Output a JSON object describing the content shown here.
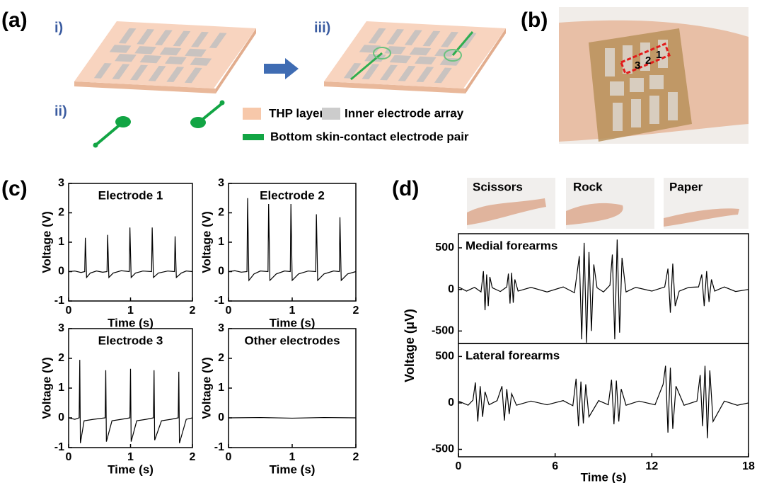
{
  "panels": {
    "a": {
      "label": "(a)",
      "steps": [
        "i)",
        "ii)",
        "iii)"
      ],
      "legend": [
        "THP layer",
        "Inner electrode array",
        "Bottom skin-contact electrode pair"
      ]
    },
    "b": {
      "label": "(b)",
      "electrode_numbers": [
        "3",
        "2",
        "1"
      ]
    },
    "c": {
      "label": "(c)"
    },
    "d": {
      "label": "(d)",
      "gestures": [
        "Scissors",
        "Rock",
        "Paper"
      ],
      "ylabel": "Voltage (μV)"
    }
  },
  "chart_data": [
    {
      "type": "line",
      "title": "Electrode 1",
      "xlabel": "Time (s)",
      "ylabel": "Voltage (V)",
      "xlim": [
        0,
        2
      ],
      "ylim": [
        -1,
        3
      ],
      "xticks": [
        0,
        1,
        2
      ],
      "yticks": [
        -1,
        0,
        1,
        2,
        3
      ],
      "color": "#000000",
      "x": [
        0,
        0.1,
        0.2,
        0.26,
        0.27,
        0.29,
        0.35,
        0.45,
        0.55,
        0.62,
        0.63,
        0.65,
        0.72,
        0.85,
        0.98,
        0.99,
        1.01,
        1.08,
        1.2,
        1.34,
        1.35,
        1.37,
        1.45,
        1.6,
        1.71,
        1.72,
        1.74,
        1.82,
        1.9,
        2
      ],
      "values": [
        0,
        0.02,
        -0.03,
        0,
        1.15,
        -0.2,
        -0.05,
        0.02,
        -0.02,
        0,
        1.25,
        -0.2,
        -0.05,
        0.03,
        0,
        1.5,
        -0.2,
        -0.05,
        0.02,
        0,
        1.5,
        -0.2,
        -0.05,
        0.02,
        0,
        1.2,
        -0.2,
        -0.05,
        0.02,
        0
      ]
    },
    {
      "type": "line",
      "title": "Electrode 2",
      "xlabel": "Time (s)",
      "ylabel": "Voltage (V)",
      "xlim": [
        0,
        2
      ],
      "ylim": [
        -1,
        3
      ],
      "xticks": [
        0,
        1,
        2
      ],
      "yticks": [
        -1,
        0,
        1,
        2,
        3
      ],
      "color": "#000000",
      "x": [
        0,
        0.1,
        0.2,
        0.29,
        0.3,
        0.32,
        0.4,
        0.5,
        0.62,
        0.63,
        0.65,
        0.75,
        0.88,
        0.97,
        0.98,
        1.0,
        1.1,
        1.25,
        1.37,
        1.38,
        1.4,
        1.5,
        1.65,
        1.74,
        1.75,
        1.77,
        1.87,
        2
      ],
      "values": [
        0,
        0.03,
        -0.02,
        0,
        2.5,
        -0.3,
        -0.08,
        0.02,
        0,
        2.3,
        -0.3,
        -0.08,
        0.02,
        0,
        2.3,
        -0.3,
        -0.08,
        0.02,
        0,
        1.95,
        -0.3,
        -0.08,
        0.02,
        0,
        1.85,
        -0.3,
        -0.08,
        0
      ]
    },
    {
      "type": "line",
      "title": "Electrode 3",
      "xlabel": "Time (s)",
      "ylabel": "Voltage (V)",
      "xlim": [
        0,
        2
      ],
      "ylim": [
        -1,
        3
      ],
      "xticks": [
        0,
        1,
        2
      ],
      "yticks": [
        -1,
        0,
        1,
        2,
        3
      ],
      "color": "#000000",
      "x": [
        0,
        0.1,
        0.17,
        0.18,
        0.19,
        0.25,
        0.4,
        0.59,
        0.6,
        0.61,
        0.7,
        0.85,
        0.99,
        1.0,
        1.01,
        1.1,
        1.25,
        1.37,
        1.38,
        1.39,
        1.5,
        1.65,
        1.77,
        1.78,
        1.79,
        1.9,
        2
      ],
      "values": [
        0,
        -0.05,
        0,
        1.95,
        -0.85,
        -0.1,
        -0.05,
        0,
        1.6,
        -0.8,
        -0.1,
        -0.05,
        0,
        1.65,
        -0.8,
        -0.1,
        -0.05,
        0,
        1.6,
        -0.75,
        -0.1,
        -0.05,
        0,
        1.55,
        -0.85,
        -0.05,
        0
      ]
    },
    {
      "type": "line",
      "title": "Other electrodes",
      "xlabel": "Time (s)",
      "ylabel": "Voltage (V)",
      "xlim": [
        0,
        2
      ],
      "ylim": [
        -1,
        3
      ],
      "xticks": [
        0,
        1,
        2
      ],
      "yticks": [
        -1,
        0,
        1,
        2,
        3
      ],
      "color": "#000000",
      "x": [
        0,
        0.5,
        1,
        1.5,
        2
      ],
      "values": [
        0,
        0.01,
        -0.01,
        0.01,
        0
      ]
    },
    {
      "type": "line",
      "title": "Medial forearms",
      "xlim": [
        0,
        18
      ],
      "ylim": [
        -650,
        670
      ],
      "yticks": [
        -500,
        0,
        500
      ],
      "color": "#000000",
      "x": [
        0,
        0.5,
        1,
        1.4,
        1.55,
        1.65,
        1.75,
        1.85,
        1.95,
        2.1,
        2.6,
        3.0,
        3.1,
        3.2,
        3.3,
        3.4,
        3.5,
        3.7,
        4.5,
        5.5,
        6.5,
        7.2,
        7.5,
        7.65,
        7.8,
        7.95,
        8.1,
        8.25,
        8.4,
        8.6,
        9.0,
        9.4,
        9.55,
        9.7,
        9.85,
        10.0,
        10.15,
        10.4,
        11,
        12,
        12.8,
        13.0,
        13.15,
        13.3,
        13.45,
        13.7,
        14.3,
        14.9,
        15.1,
        15.25,
        15.4,
        15.55,
        15.7,
        15.9,
        16.5,
        17.2,
        18
      ],
      "values": [
        30,
        -20,
        25,
        -30,
        220,
        -250,
        180,
        -200,
        150,
        20,
        -25,
        30,
        190,
        -170,
        200,
        -160,
        120,
        -20,
        25,
        -30,
        30,
        -40,
        400,
        -600,
        560,
        -640,
        450,
        -500,
        300,
        20,
        -30,
        50,
        420,
        -600,
        600,
        -520,
        380,
        -30,
        25,
        -20,
        30,
        250,
        -280,
        310,
        -200,
        -20,
        25,
        30,
        180,
        -200,
        220,
        -150,
        120,
        -20,
        30,
        -25,
        0
      ]
    },
    {
      "type": "line",
      "title": "Lateral forearms",
      "xlabel": "Time (s)",
      "xlim": [
        0,
        18
      ],
      "ylim": [
        -580,
        640
      ],
      "xticks": [
        0,
        6,
        12,
        18
      ],
      "yticks": [
        -500,
        0,
        500
      ],
      "color": "#000000",
      "x": [
        0,
        0.6,
        0.9,
        1.05,
        1.2,
        1.35,
        1.5,
        1.65,
        1.9,
        2.4,
        2.7,
        2.85,
        3.0,
        3.15,
        3.3,
        3.6,
        4.5,
        5.5,
        6.5,
        7.1,
        7.3,
        7.45,
        7.6,
        7.75,
        7.9,
        8.1,
        8.7,
        9.3,
        9.5,
        9.65,
        9.8,
        9.95,
        10.1,
        10.4,
        11.2,
        12.2,
        12.7,
        12.85,
        13.0,
        13.15,
        13.3,
        13.5,
        14.0,
        14.8,
        15.0,
        15.15,
        15.3,
        15.45,
        15.6,
        15.8,
        16.5,
        17.3,
        18
      ],
      "values": [
        20,
        -25,
        30,
        220,
        -200,
        180,
        -150,
        120,
        -20,
        25,
        180,
        -190,
        150,
        -120,
        100,
        -25,
        20,
        -20,
        25,
        -30,
        260,
        -250,
        230,
        -220,
        200,
        -150,
        25,
        -20,
        250,
        -230,
        240,
        -200,
        150,
        -25,
        20,
        -20,
        200,
        400,
        -320,
        380,
        -280,
        180,
        -25,
        20,
        300,
        -250,
        400,
        -380,
        350,
        -200,
        20,
        -25,
        0
      ]
    }
  ]
}
